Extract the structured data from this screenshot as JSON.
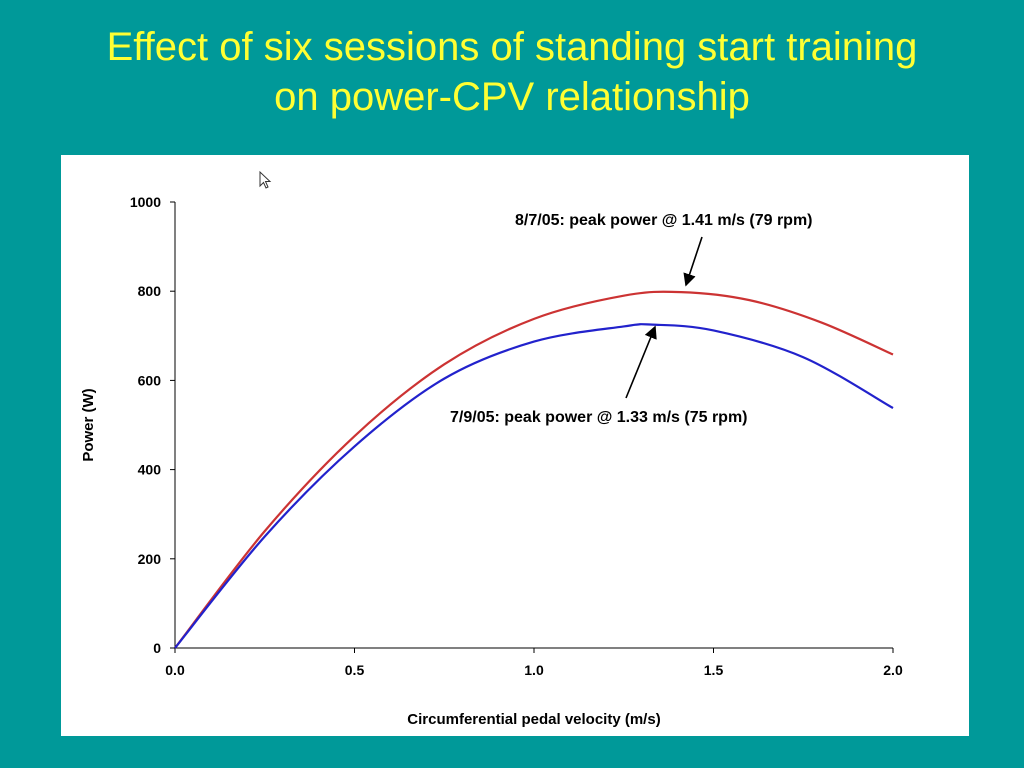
{
  "slide": {
    "title_line1": "Effect of six sessions of standing start training",
    "title_line2": "on power-CPV relationship"
  },
  "colors": {
    "background": "#009999",
    "title": "#ffff33",
    "series_8_7_05": "#cc3333",
    "series_7_9_05": "#2222cc"
  },
  "chart_data": {
    "type": "line",
    "title": "",
    "xlabel": "Circumferential pedal velocity (m/s)",
    "ylabel": "Power (W)",
    "xlim": [
      0,
      2.0
    ],
    "ylim": [
      0,
      1000
    ],
    "x_ticks": [
      "0.0",
      "0.5",
      "1.0",
      "1.5",
      "2.0"
    ],
    "y_ticks": [
      "0",
      "200",
      "400",
      "600",
      "800",
      "1000"
    ],
    "grid": false,
    "legend": "none",
    "series": [
      {
        "id": "8/7/05",
        "color": "#cc3333",
        "x": [
          0,
          0.25,
          0.5,
          0.75,
          1.0,
          1.25,
          1.41,
          1.6,
          1.8,
          2.0
        ],
        "y": [
          0,
          262,
          475,
          636,
          738,
          790,
          798,
          780,
          730,
          658
        ]
      },
      {
        "id": "7/9/05",
        "color": "#2222cc",
        "x": [
          0,
          0.25,
          0.5,
          0.75,
          1.0,
          1.25,
          1.33,
          1.5,
          1.75,
          2.0
        ],
        "y": [
          0,
          250,
          452,
          604,
          687,
          721,
          725,
          712,
          652,
          538
        ]
      }
    ],
    "annotations": [
      {
        "text": "8/7/05: peak power @ 1.41 m/s (79 rpm)",
        "x": 1.41,
        "y": 798
      },
      {
        "text": "7/9/05: peak power @ 1.33 m/s (75 rpm)",
        "x": 1.33,
        "y": 725
      }
    ]
  }
}
